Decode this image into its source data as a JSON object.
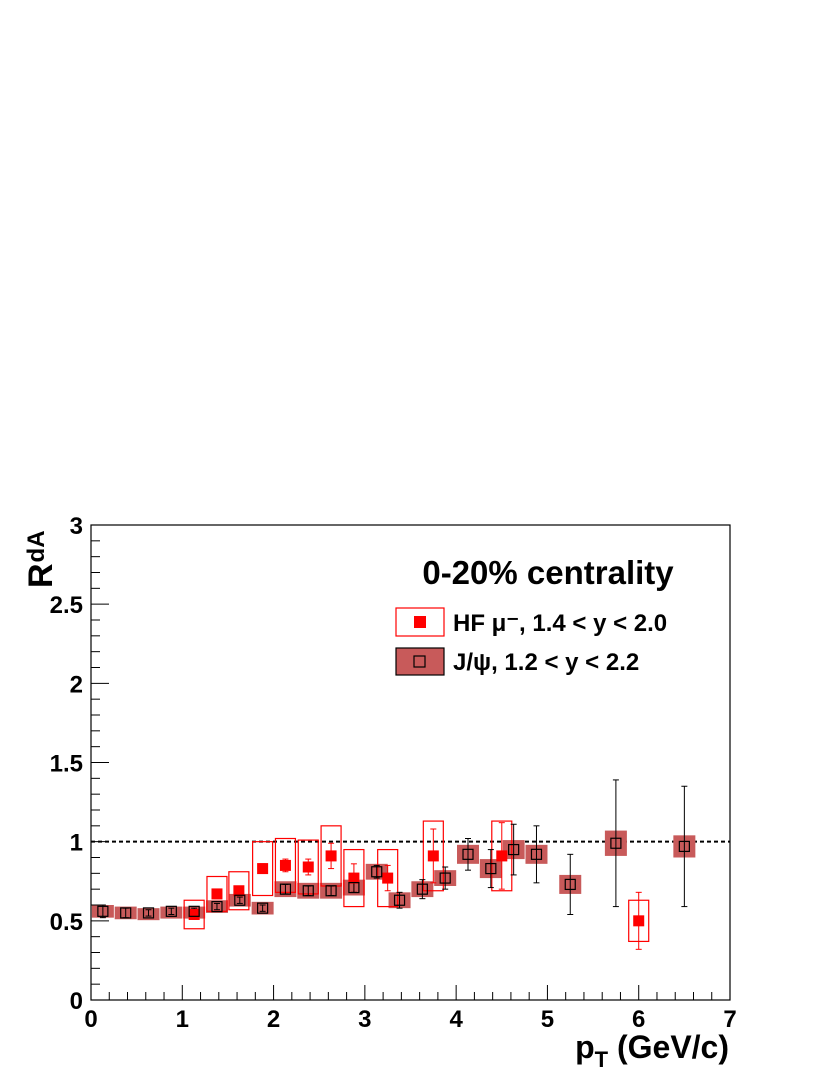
{
  "chart_data": {
    "type": "scatter",
    "title": "0-20% centrality",
    "xlabel": "p",
    "xlabel_sub": "T",
    "xlabel_unit": " (GeV/c)",
    "ylabel": "R",
    "ylabel_sub": "dA",
    "xlim": [
      0,
      7
    ],
    "ylim": [
      0,
      3
    ],
    "x_ticks": [
      "0",
      "1",
      "2",
      "3",
      "4",
      "5",
      "6",
      "7"
    ],
    "y_ticks": [
      "0",
      "0.5",
      "1",
      "1.5",
      "2",
      "2.5",
      "3"
    ],
    "reference_line_y": 1,
    "grid": false,
    "legend_position": "top-right",
    "series": [
      {
        "name": "HF μ⁻,  1.4 < y < 2.0",
        "color": "#ff0000",
        "marker": "filled-square",
        "points": [
          {
            "x": 1.13,
            "y": 0.54,
            "stat": 0.03,
            "sys": 0.09
          },
          {
            "x": 1.38,
            "y": 0.67,
            "stat": 0.03,
            "sys": 0.11
          },
          {
            "x": 1.62,
            "y": 0.69,
            "stat": 0.03,
            "sys": 0.12
          },
          {
            "x": 1.88,
            "y": 0.83,
            "stat": 0.03,
            "sys": 0.17
          },
          {
            "x": 2.13,
            "y": 0.85,
            "stat": 0.04,
            "sys": 0.17
          },
          {
            "x": 2.38,
            "y": 0.84,
            "stat": 0.05,
            "sys": 0.17
          },
          {
            "x": 2.63,
            "y": 0.91,
            "stat": 0.08,
            "sys": 0.19
          },
          {
            "x": 2.88,
            "y": 0.77,
            "stat": 0.09,
            "sys": 0.18
          },
          {
            "x": 3.25,
            "y": 0.77,
            "stat": 0.08,
            "sys": 0.18
          },
          {
            "x": 3.75,
            "y": 0.91,
            "stat": 0.17,
            "sys": 0.22
          },
          {
            "x": 4.5,
            "y": 0.91,
            "stat": 0.21,
            "sys": 0.22
          },
          {
            "x": 6.0,
            "y": 0.5,
            "stat": 0.18,
            "sys": 0.13
          }
        ]
      },
      {
        "name": "J/ψ, 1.2 < y < 2.2",
        "color": "#c85a5a",
        "marker": "open-square-on-box",
        "points": [
          {
            "x": 0.13,
            "y": 0.56,
            "stat": 0.04,
            "sys": 0.04
          },
          {
            "x": 0.38,
            "y": 0.55,
            "stat": 0.03,
            "sys": 0.04
          },
          {
            "x": 0.63,
            "y": 0.55,
            "stat": 0.02,
            "sys": 0.03
          },
          {
            "x": 0.88,
            "y": 0.56,
            "stat": 0.02,
            "sys": 0.03
          },
          {
            "x": 1.13,
            "y": 0.56,
            "stat": 0.02,
            "sys": 0.03
          },
          {
            "x": 1.38,
            "y": 0.59,
            "stat": 0.02,
            "sys": 0.04
          },
          {
            "x": 1.63,
            "y": 0.63,
            "stat": 0.02,
            "sys": 0.04
          },
          {
            "x": 1.88,
            "y": 0.58,
            "stat": 0.02,
            "sys": 0.04
          },
          {
            "x": 2.13,
            "y": 0.7,
            "stat": 0.03,
            "sys": 0.05
          },
          {
            "x": 2.38,
            "y": 0.69,
            "stat": 0.03,
            "sys": 0.05
          },
          {
            "x": 2.63,
            "y": 0.69,
            "stat": 0.03,
            "sys": 0.05
          },
          {
            "x": 2.88,
            "y": 0.71,
            "stat": 0.03,
            "sys": 0.05
          },
          {
            "x": 3.13,
            "y": 0.81,
            "stat": 0.04,
            "sys": 0.05
          },
          {
            "x": 3.38,
            "y": 0.63,
            "stat": 0.05,
            "sys": 0.05
          },
          {
            "x": 3.63,
            "y": 0.7,
            "stat": 0.06,
            "sys": 0.05
          },
          {
            "x": 3.88,
            "y": 0.77,
            "stat": 0.07,
            "sys": 0.05
          },
          {
            "x": 4.13,
            "y": 0.92,
            "stat": 0.1,
            "sys": 0.06
          },
          {
            "x": 4.38,
            "y": 0.83,
            "stat": 0.12,
            "sys": 0.06
          },
          {
            "x": 4.63,
            "y": 0.95,
            "stat": 0.16,
            "sys": 0.06
          },
          {
            "x": 4.88,
            "y": 0.92,
            "stat": 0.18,
            "sys": 0.06
          },
          {
            "x": 5.25,
            "y": 0.73,
            "stat": 0.19,
            "sys": 0.06
          },
          {
            "x": 5.75,
            "y": 0.99,
            "stat": 0.4,
            "sys": 0.08
          },
          {
            "x": 6.5,
            "y": 0.97,
            "stat": 0.38,
            "sys": 0.07
          }
        ]
      }
    ]
  }
}
